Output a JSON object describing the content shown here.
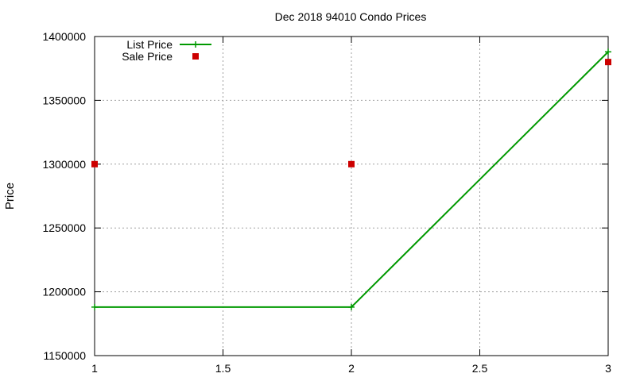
{
  "chart_data": {
    "type": "line",
    "title": "Dec 2018 94010 Condo Prices",
    "xlabel": "",
    "ylabel": "Price",
    "xlim": [
      1,
      3
    ],
    "ylim": [
      1150000,
      1400000
    ],
    "x_ticks": [
      1,
      1.5,
      2,
      2.5,
      3
    ],
    "x_tick_labels": [
      "1",
      "1.5",
      "2",
      "2.5",
      "3"
    ],
    "y_ticks": [
      1150000,
      1200000,
      1250000,
      1300000,
      1350000,
      1400000
    ],
    "y_tick_labels": [
      "1150000",
      "1200000",
      "1250000",
      "1300000",
      "1350000",
      "1400000"
    ],
    "grid": true,
    "legend_position": "top-left",
    "series": [
      {
        "name": "List Price",
        "style": "line+cross",
        "color": "#009900",
        "x": [
          1,
          2,
          3
        ],
        "y": [
          1188000,
          1188000,
          1388000
        ]
      },
      {
        "name": "Sale Price",
        "style": "square-points",
        "color": "#cc0000",
        "x": [
          1,
          2,
          3
        ],
        "y": [
          1300000,
          1300000,
          1380000
        ]
      }
    ]
  }
}
